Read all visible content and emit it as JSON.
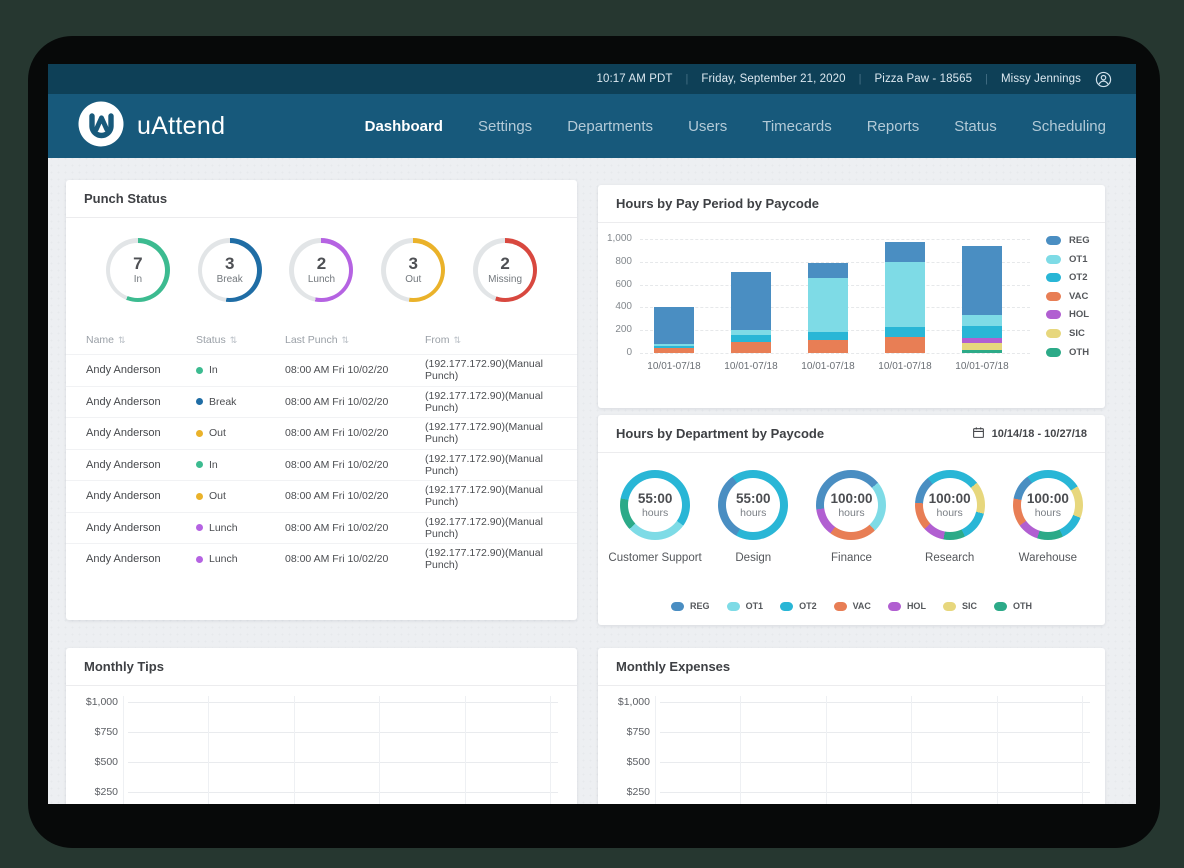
{
  "topbar": {
    "items": [
      "10:17 AM PDT",
      "Friday, September 21, 2020",
      "Pizza Paw - 18565",
      "Missy Jennings"
    ]
  },
  "nav": {
    "logo_text": "uAttend",
    "items": [
      {
        "label": "Dashboard",
        "active": true
      },
      {
        "label": "Settings",
        "active": false
      },
      {
        "label": "Departments",
        "active": false
      },
      {
        "label": "Users",
        "active": false
      },
      {
        "label": "Timecards",
        "active": false
      },
      {
        "label": "Reports",
        "active": false
      },
      {
        "label": "Status",
        "active": false
      },
      {
        "label": "Scheduling",
        "active": false
      }
    ]
  },
  "colors": {
    "paycodes": {
      "REG": "#4a8ec2",
      "OT1": "#7edbe6",
      "OT2": "#29b6d6",
      "VAC": "#e87e55",
      "HOL": "#b15fd1",
      "SIC": "#e7d77d",
      "OTH": "#2caa88"
    },
    "statuses": {
      "in": "#3cbb90",
      "break": "#1f6da5",
      "lunch": "#b563e2",
      "out": "#eab22a",
      "missing": "#d8483f"
    },
    "ring": "#e2e5e7",
    "topbar_bg": "#0e4057",
    "navbar_bg": "#17597b"
  },
  "punch_status": {
    "title": "Punch Status",
    "circles": [
      {
        "count": "7",
        "label": "In",
        "status": "in",
        "arc_pct": 56
      },
      {
        "count": "3",
        "label": "Break",
        "status": "break",
        "arc_pct": 52
      },
      {
        "count": "2",
        "label": "Lunch",
        "status": "lunch",
        "arc_pct": 53
      },
      {
        "count": "3",
        "label": "Out",
        "status": "out",
        "arc_pct": 52
      },
      {
        "count": "2",
        "label": "Missing",
        "status": "missing",
        "arc_pct": 55
      }
    ],
    "table": {
      "headers": [
        "Name",
        "Status",
        "Last Punch",
        "From"
      ],
      "rows": [
        {
          "name": "Andy Anderson",
          "status_label": "In",
          "status": "in",
          "last_punch": "08:00 AM Fri 10/02/20",
          "from": "(192.177.172.90)(Manual Punch)"
        },
        {
          "name": "Andy Anderson",
          "status_label": "Break",
          "status": "break",
          "last_punch": "08:00 AM Fri 10/02/20",
          "from": "(192.177.172.90)(Manual Punch)"
        },
        {
          "name": "Andy Anderson",
          "status_label": "Out",
          "status": "out",
          "last_punch": "08:00 AM Fri 10/02/20",
          "from": "(192.177.172.90)(Manual Punch)"
        },
        {
          "name": "Andy Anderson",
          "status_label": "In",
          "status": "in",
          "last_punch": "08:00 AM Fri 10/02/20",
          "from": "(192.177.172.90)(Manual Punch)"
        },
        {
          "name": "Andy Anderson",
          "status_label": "Out",
          "status": "out",
          "last_punch": "08:00 AM Fri 10/02/20",
          "from": "(192.177.172.90)(Manual Punch)"
        },
        {
          "name": "Andy Anderson",
          "status_label": "Lunch",
          "status": "lunch",
          "last_punch": "08:00 AM Fri 10/02/20",
          "from": "(192.177.172.90)(Manual Punch)"
        },
        {
          "name": "Andy Anderson",
          "status_label": "Lunch",
          "status": "lunch",
          "last_punch": "08:00 AM Fri 10/02/20",
          "from": "(192.177.172.90)(Manual Punch)"
        }
      ]
    }
  },
  "chart_data": [
    {
      "id": "hours_by_pay_period",
      "type": "bar",
      "stacked": true,
      "title": "Hours by Pay Period by Paycode",
      "ylim": [
        0,
        1000
      ],
      "yticks": [
        "1,000",
        "800",
        "600",
        "400",
        "200",
        "0"
      ],
      "grid": "horizontal-dashed",
      "legend": [
        "REG",
        "OT1",
        "OT2",
        "VAC",
        "HOL",
        "SIC",
        "OTH"
      ],
      "legend_position": "right",
      "categories": [
        "10/01-07/18",
        "10/01-07/18",
        "10/01-07/18",
        "10/01-07/18",
        "10/01-07/18"
      ],
      "bars": [
        {
          "label": "10/01-07/18",
          "segments": [
            [
              "VAC",
              40
            ],
            [
              "OT2",
              25
            ],
            [
              "OT1",
              15
            ],
            [
              "REG",
              325
            ]
          ]
        },
        {
          "label": "10/01-07/18",
          "segments": [
            [
              "VAC",
              100
            ],
            [
              "OT2",
              55
            ],
            [
              "OT1",
              45
            ],
            [
              "REG",
              510
            ]
          ]
        },
        {
          "label": "10/01-07/18",
          "segments": [
            [
              "VAC",
              115
            ],
            [
              "OT2",
              70
            ],
            [
              "OT1",
              470
            ],
            [
              "REG",
              135
            ]
          ]
        },
        {
          "label": "10/01-07/18",
          "segments": [
            [
              "VAC",
              140
            ],
            [
              "OT2",
              90
            ],
            [
              "OT1",
              570
            ],
            [
              "REG",
              175
            ]
          ]
        },
        {
          "label": "10/01-07/18",
          "segments": [
            [
              "OTH",
              25
            ],
            [
              "SIC",
              60
            ],
            [
              "HOL",
              45
            ],
            [
              "OT2",
              110
            ],
            [
              "OT1",
              95
            ],
            [
              "REG",
              600
            ]
          ]
        }
      ]
    },
    {
      "id": "hours_by_department",
      "type": "pie",
      "donut": true,
      "title": "Hours by Department by Paycode",
      "date_range": "10/14/18 - 10/27/18",
      "legend": [
        "REG",
        "OT1",
        "OT2",
        "VAC",
        "HOL",
        "SIC",
        "OTH"
      ],
      "legend_position": "bottom",
      "donuts": [
        {
          "label": "Customer Support",
          "value": "55:00",
          "unit": "hours",
          "segments": [
            [
              "OT2",
              35
            ],
            [
              "OT1",
              28
            ],
            [
              "OTH",
              15
            ],
            [
              "OT2",
              22
            ]
          ]
        },
        {
          "label": "Design",
          "value": "55:00",
          "unit": "hours",
          "segments": [
            [
              "OT2",
              58
            ],
            [
              "REG",
              32
            ],
            [
              "OT2",
              10
            ]
          ]
        },
        {
          "label": "Finance",
          "value": "100:00",
          "unit": "hours",
          "segments": [
            [
              "REG",
              14
            ],
            [
              "OT1",
              24
            ],
            [
              "VAC",
              22
            ],
            [
              "HOL",
              13
            ],
            [
              "REG",
              27
            ]
          ]
        },
        {
          "label": "Research",
          "value": "100:00",
          "unit": "hours",
          "segments": [
            [
              "OT2",
              14
            ],
            [
              "SIC",
              15
            ],
            [
              "OT2",
              14
            ],
            [
              "OTH",
              10
            ],
            [
              "HOL",
              10
            ],
            [
              "VAC",
              13
            ],
            [
              "REG",
              13
            ],
            [
              "OT2",
              11
            ]
          ]
        },
        {
          "label": "Warehouse",
          "value": "100:00",
          "unit": "hours",
          "segments": [
            [
              "OT2",
              16
            ],
            [
              "SIC",
              15
            ],
            [
              "OT2",
              12
            ],
            [
              "OTH",
              12
            ],
            [
              "HOL",
              10
            ],
            [
              "VAC",
              13
            ],
            [
              "REG",
              12
            ],
            [
              "OT2",
              10
            ]
          ]
        }
      ]
    },
    {
      "id": "monthly_tips",
      "type": "line",
      "title": "Monthly Tips",
      "yticks": [
        "$1,000",
        "$750",
        "$500",
        "$250"
      ],
      "grid": "both",
      "series": []
    },
    {
      "id": "monthly_expenses",
      "type": "line",
      "title": "Monthly Expenses",
      "yticks": [
        "$1,000",
        "$750",
        "$500",
        "$250"
      ],
      "grid": "both",
      "series": []
    }
  ]
}
